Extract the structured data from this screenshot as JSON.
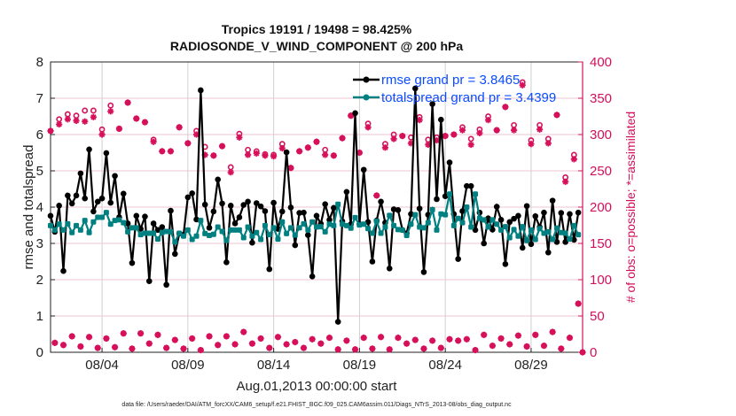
{
  "chart_data": {
    "type": "line",
    "title": [
      "Tropics 19191 / 19498 = 98.425%",
      "RADIOSONDE_V_WIND_COMPONENT @ 200 hPa"
    ],
    "xlabel": "Aug.01,2013 00:00:00 start",
    "ylabel": "rmse and totalspread",
    "ylabel_right": "# of obs: o=possible; *=assimilated",
    "footnote": "data file: /Users/raeder/DAI/ATM_forcXX/CAM6_setup/f.e21.FHIST_BGC.f09_025.CAM6assim.011/Diags_NTrS_2013-08/obs_diag_output.nc",
    "x_units": "days since Aug.01,2013 00:00 (6-hourly samples)",
    "x_step_days": 0.25,
    "xlim": [
      0,
      31
    ],
    "ylim": [
      0,
      8
    ],
    "ylim_right": [
      0,
      400
    ],
    "xticks": [
      3,
      8,
      13,
      18,
      23,
      28
    ],
    "xtick_labels": [
      "08/04",
      "08/09",
      "08/14",
      "08/19",
      "08/24",
      "08/29"
    ],
    "yticks": [
      0,
      1,
      2,
      3,
      4,
      5,
      6,
      7,
      8
    ],
    "yticks_right": [
      0,
      50,
      100,
      150,
      200,
      250,
      300,
      350,
      400
    ],
    "grid": true,
    "legend_position": "top-right",
    "colors": {
      "rmse": "#000000",
      "spread": "#008080",
      "obs": "#d6105a",
      "legend_text": "#0a4cff",
      "grid_v": "#d0d0d0",
      "grid_h": "#f2c4d4"
    },
    "series": [
      {
        "name": "rmse grand pr = 3.8465",
        "values": [
          3.76,
          3.32,
          4.04,
          2.24,
          4.32,
          4.1,
          4.32,
          4.93,
          4.24,
          5.59,
          3.88,
          4.15,
          4.24,
          5.49,
          4.12,
          4.86,
          3.72,
          4.37,
          3.55,
          2.46,
          3.76,
          3.4,
          3.74,
          1.96,
          3.55,
          3.37,
          3.45,
          1.86,
          3.9,
          2.71,
          3.27,
          3.24,
          4.27,
          4.38,
          3.66,
          7.22,
          4.07,
          3.43,
          3.88,
          4.76,
          4.1,
          2.48,
          4.04,
          3.55,
          3.72,
          4.06,
          4.15,
          3.02,
          4.11,
          4.02,
          3.89,
          2.29,
          4.12,
          3.4,
          3.88,
          5.51,
          3.99,
          2.95,
          3.84,
          3.85,
          3.23,
          2.09,
          3.76,
          3.54,
          4.08,
          3.65,
          3.98,
          0.84,
          3.61,
          4.42,
          3.53,
          6.59,
          3.53,
          5.03,
          3.59,
          2.5,
          3.63,
          4.15,
          3.57,
          2.31,
          3.94,
          3.92,
          3.37,
          3.28,
          3.81,
          7.27,
          3.96,
          2.21,
          3.79,
          6.84,
          4.22,
          6.41,
          4.3,
          5.23,
          3.81,
          2.57,
          3.89,
          4.58,
          4.58,
          3.37,
          3.85,
          3.0,
          3.69,
          3.38,
          4.01,
          3.65,
          2.43,
          3.59,
          3.68,
          3.76,
          2.88,
          4.03,
          2.98,
          3.75,
          3.45,
          3.85,
          2.75,
          4.18,
          3.04,
          3.84,
          3.04,
          3.81,
          3.1,
          3.85
        ]
      },
      {
        "name": "totalspread grand pr = 3.4399",
        "values": [
          3.49,
          3.37,
          3.53,
          3.37,
          3.54,
          3.3,
          3.49,
          3.37,
          3.63,
          3.3,
          3.59,
          3.72,
          3.72,
          3.85,
          3.53,
          3.63,
          3.65,
          3.57,
          3.32,
          3.43,
          3.43,
          3.24,
          3.28,
          3.28,
          3.28,
          3.12,
          3.3,
          3.33,
          3.32,
          3.04,
          3.28,
          3.2,
          3.37,
          3.11,
          3.2,
          3.63,
          3.27,
          3.22,
          3.25,
          3.45,
          3.33,
          3.08,
          3.37,
          3.37,
          3.37,
          3.16,
          3.45,
          3.2,
          3.3,
          3.11,
          3.49,
          3.24,
          3.43,
          3.12,
          3.59,
          3.27,
          3.43,
          3.23,
          3.43,
          3.54,
          3.37,
          3.59,
          3.45,
          3.46,
          3.32,
          3.53,
          3.49,
          4.08,
          3.53,
          3.49,
          3.42,
          3.71,
          3.51,
          3.53,
          3.41,
          3.28,
          3.61,
          3.28,
          3.45,
          3.77,
          3.49,
          3.38,
          3.37,
          3.22,
          3.53,
          3.79,
          3.45,
          3.43,
          3.57,
          3.93,
          3.37,
          3.81,
          3.79,
          4.36,
          3.49,
          3.69,
          3.57,
          4.0,
          3.45,
          4.36,
          3.69,
          3.65,
          3.45,
          3.65,
          3.53,
          3.37,
          3.46,
          3.16,
          3.38,
          3.2,
          3.46,
          3.08,
          3.37,
          3.11,
          3.41,
          3.28,
          3.32,
          3.11,
          3.42,
          3.3,
          3.28,
          3.12,
          3.49,
          3.24
        ]
      }
    ],
    "obs_possible": [
      305,
      13,
      321,
      10,
      328,
      22,
      326,
      8,
      333,
      21,
      333,
      6,
      307,
      19,
      340,
      7,
      308,
      26,
      344,
      5,
      322,
      26,
      317,
      12,
      293,
      24,
      277,
      6,
      277,
      17,
      310,
      5,
      288,
      19,
      305,
      3,
      283,
      22,
      271,
      10,
      284,
      22,
      255,
      11,
      301,
      28,
      279,
      12,
      277,
      19,
      273,
      6,
      272,
      21,
      287,
      11,
      254,
      14,
      277,
      6,
      282,
      18,
      290,
      12,
      279,
      20,
      271,
      4,
      295,
      16,
      326,
      4,
      275,
      20,
      315,
      5,
      216,
      21,
      287,
      4,
      300,
      20,
      298,
      12,
      296,
      17,
      324,
      5,
      293,
      16,
      296,
      6,
      298,
      18,
      300,
      16,
      310,
      18,
      294,
      3,
      307,
      24,
      325,
      9,
      306,
      19,
      338,
      11,
      313,
      23,
      372,
      8,
      292,
      24,
      313,
      9,
      294,
      28,
      327,
      5,
      241,
      20,
      272,
      67,
      0
    ],
    "obs_assimilated": [
      305,
      13,
      314,
      10,
      321,
      22,
      319,
      8,
      318,
      21,
      324,
      6,
      300,
      19,
      332,
      7,
      308,
      26,
      344,
      5,
      322,
      26,
      317,
      12,
      290,
      24,
      277,
      6,
      277,
      17,
      310,
      5,
      288,
      19,
      300,
      3,
      272,
      22,
      271,
      10,
      284,
      22,
      248,
      11,
      296,
      28,
      272,
      12,
      274,
      19,
      271,
      6,
      270,
      21,
      281,
      11,
      254,
      14,
      277,
      6,
      282,
      18,
      290,
      12,
      272,
      20,
      271,
      4,
      295,
      16,
      326,
      4,
      275,
      20,
      310,
      5,
      216,
      21,
      282,
      4,
      294,
      20,
      298,
      12,
      288,
      17,
      320,
      5,
      286,
      16,
      292,
      6,
      298,
      18,
      300,
      16,
      306,
      18,
      286,
      3,
      302,
      24,
      320,
      9,
      306,
      19,
      338,
      11,
      306,
      23,
      368,
      8,
      287,
      24,
      307,
      9,
      288,
      28,
      327,
      5,
      235,
      20,
      266,
      67,
      0
    ]
  }
}
